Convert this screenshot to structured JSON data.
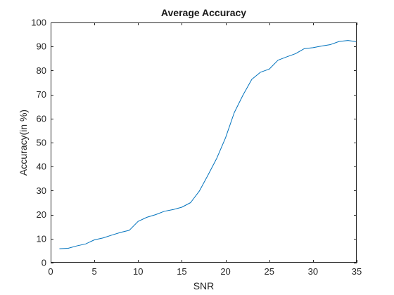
{
  "chart_data": {
    "type": "line",
    "title": "Average Accuracy",
    "xlabel": "SNR",
    "ylabel": "Accuracy(in %)",
    "xlim": [
      0,
      35
    ],
    "ylim": [
      0,
      100
    ],
    "xticks": [
      0,
      5,
      10,
      15,
      20,
      25,
      30,
      35
    ],
    "yticks": [
      0,
      10,
      20,
      30,
      40,
      50,
      60,
      70,
      80,
      90,
      100
    ],
    "grid": false,
    "box": true,
    "colors": {
      "line": "#0072BD",
      "axes": "#262626",
      "background": "#ffffff"
    },
    "series": [
      {
        "x": [
          1,
          2,
          3,
          4,
          5,
          6,
          7,
          8,
          9,
          10,
          11,
          12,
          13,
          14,
          15,
          16,
          17,
          18,
          19,
          20,
          21,
          22,
          23,
          24,
          25,
          26,
          27,
          28,
          29,
          30,
          31,
          32,
          33,
          34,
          35
        ],
        "values": [
          5.8,
          6.0,
          7.0,
          7.8,
          9.5,
          10.3,
          11.5,
          12.6,
          13.5,
          17.2,
          18.9,
          20.0,
          21.4,
          22.1,
          23.1,
          25.0,
          29.8,
          36.5,
          43.5,
          52.0,
          62.5,
          69.8,
          76.3,
          79.3,
          80.6,
          84.3,
          85.7,
          87.0,
          89.1,
          89.5,
          90.2,
          90.8,
          92.1,
          92.5,
          92.0
        ]
      }
    ]
  }
}
